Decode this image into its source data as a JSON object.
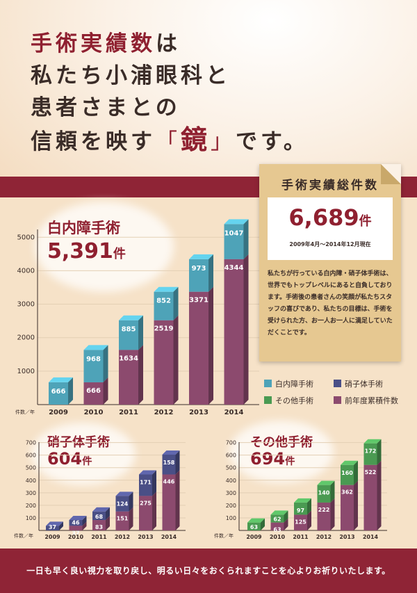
{
  "headline": {
    "line1_accent": "手術実績数",
    "line1_rest": "は",
    "line2": "私たち小浦眼科と",
    "line3": "患者さまとの",
    "line4_pre": "信頼を映す",
    "bracket_open": "「",
    "kagami": "鏡",
    "bracket_close": "」",
    "line4_post": "です。"
  },
  "summary": {
    "title": "手術実績総件数",
    "total": "6,689",
    "unit": "件",
    "period": "2009年4月～2014年12月現在",
    "description": "私たちが行っている白内障・硝子体手術は、世界でもトップレベルにあると自負しております。手術後の患者さんの笑顔が私たちスタッフの喜びであり、私たちの目標は、手術を受けられた方、お一人お一人に満足していただくことです。"
  },
  "legend": [
    {
      "label": "白内障手術",
      "color": "#4ea3b8"
    },
    {
      "label": "硝子体手術",
      "color": "#4a4f86"
    },
    {
      "label": "その他手術",
      "color": "#4a9a52"
    },
    {
      "label": "前年度累積件数",
      "color": "#8c4a6e"
    }
  ],
  "axis_label": "件数／年",
  "footer": "一日も早く良い視力を取り戻し、明るい日々をおくられますことを心よりお祈りいたします。",
  "chart_data": [
    {
      "type": "bar",
      "title": "白内障手術",
      "total": "5,391",
      "unit": "件",
      "categories": [
        "2009",
        "2010",
        "2011",
        "2012",
        "2013",
        "2014"
      ],
      "series": [
        {
          "name": "前年度累積件数",
          "values": [
            0,
            666,
            1634,
            2519,
            3371,
            4344
          ],
          "color": "#8c4a6e"
        },
        {
          "name": "白内障手術",
          "values": [
            666,
            968,
            885,
            852,
            973,
            1047
          ],
          "color": "#4ea3b8"
        }
      ],
      "yticks": [
        1000,
        2000,
        3000,
        4000,
        5000
      ],
      "ylim": [
        0,
        5400
      ]
    },
    {
      "type": "bar",
      "title": "硝子体手術",
      "total": "604",
      "unit": "件",
      "categories": [
        "2009",
        "2010",
        "2011",
        "2012",
        "2013",
        "2014"
      ],
      "series": [
        {
          "name": "前年度累積件数",
          "values": [
            0,
            37,
            83,
            151,
            275,
            446
          ],
          "color": "#8c4a6e"
        },
        {
          "name": "硝子体手術",
          "values": [
            37,
            46,
            68,
            124,
            171,
            158
          ],
          "color": "#4a4f86"
        }
      ],
      "yticks": [
        100,
        200,
        300,
        400,
        500,
        600,
        700
      ],
      "ylim": [
        0,
        720
      ]
    },
    {
      "type": "bar",
      "title": "その他手術",
      "total": "694",
      "unit": "件",
      "categories": [
        "2009",
        "2010",
        "2011",
        "2012",
        "2013",
        "2014"
      ],
      "series": [
        {
          "name": "前年度累積件数",
          "values": [
            0,
            63,
            125,
            222,
            362,
            522
          ],
          "color": "#8c4a6e"
        },
        {
          "name": "その他手術",
          "values": [
            63,
            62,
            97,
            140,
            160,
            172
          ],
          "color": "#4a9a52"
        }
      ],
      "yticks": [
        100,
        200,
        300,
        400,
        500,
        600,
        700
      ],
      "ylim": [
        0,
        720
      ]
    }
  ]
}
